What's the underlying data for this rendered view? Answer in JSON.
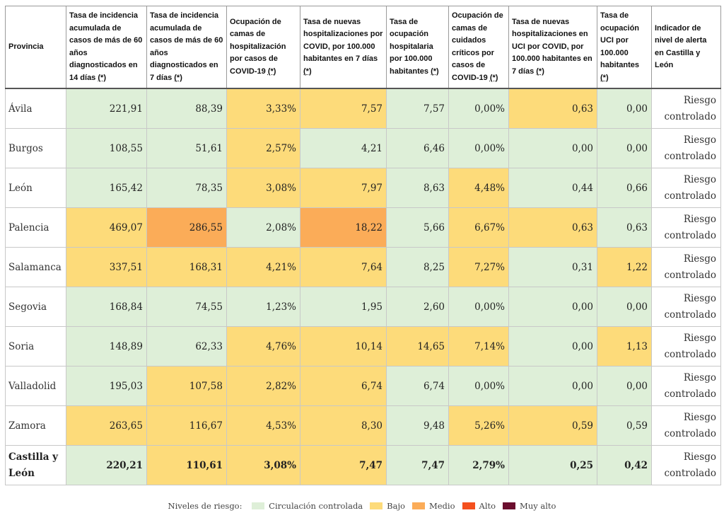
{
  "table": {
    "headers": [
      "Provincia",
      "Tasa de incidencia acumulada de casos de más de 60 años diagnosticados en 14 días",
      "Tasa de incidencia acumulada de casos de más de 60 años diagnosticados en 7 días",
      "Ocupación de camas de hospitalización por casos de COVID-19",
      "Tasa de nuevas hospitalizaciones por COVID, por 100.000 habitantes en 7 días",
      "Tasa de ocupación hospitalaria por 100.000 habitantes",
      "Ocupación de camas de cuidados críticos por casos de COVID-19",
      "Tasa de nuevas hospitalizaciones en UCI por COVID, por 100.000 habitantes en 7 días",
      "Tasa de ocupación UCI por 100.000 habitantes",
      "Indicador de nivel de alerta en Castilla y León"
    ],
    "footnote_marker": "(*)",
    "rows": [
      {
        "province": "Ávila",
        "values": [
          "221,91",
          "88,39",
          "3,33%",
          "7,57",
          "7,57",
          "0,00%",
          "0,63",
          "0,00"
        ],
        "indicator": [
          "Riesgo",
          "controlado"
        ]
      },
      {
        "province": "Burgos",
        "values": [
          "108,55",
          "51,61",
          "2,57%",
          "4,21",
          "6,46",
          "0,00%",
          "0,00",
          "0,00"
        ],
        "indicator": [
          "Riesgo",
          "controlado"
        ]
      },
      {
        "province": "León",
        "values": [
          "165,42",
          "78,35",
          "3,08%",
          "7,97",
          "8,63",
          "4,48%",
          "0,44",
          "0,66"
        ],
        "indicator": [
          "Riesgo",
          "controlado"
        ]
      },
      {
        "province": "Palencia",
        "values": [
          "469,07",
          "286,55",
          "2,08%",
          "18,22",
          "5,66",
          "6,67%",
          "0,63",
          "0,63"
        ],
        "indicator": [
          "Riesgo",
          "controlado"
        ]
      },
      {
        "province": "Salamanca",
        "values": [
          "337,51",
          "168,31",
          "4,21%",
          "7,64",
          "8,25",
          "7,27%",
          "0,31",
          "1,22"
        ],
        "indicator": [
          "Riesgo",
          "controlado"
        ]
      },
      {
        "province": "Segovia",
        "values": [
          "168,84",
          "74,55",
          "1,23%",
          "1,95",
          "2,60",
          "0,00%",
          "0,00",
          "0,00"
        ],
        "indicator": [
          "Riesgo",
          "controlado"
        ]
      },
      {
        "province": "Soria",
        "values": [
          "148,89",
          "62,33",
          "4,76%",
          "10,14",
          "14,65",
          "7,14%",
          "0,00",
          "1,13"
        ],
        "indicator": [
          "Riesgo",
          "controlado"
        ]
      },
      {
        "province": "Valladolid",
        "values": [
          "195,03",
          "107,58",
          "2,82%",
          "6,74",
          "6,74",
          "0,00%",
          "0,00",
          "0,00"
        ],
        "indicator": [
          "Riesgo",
          "controlado"
        ]
      },
      {
        "province": "Zamora",
        "values": [
          "263,65",
          "116,67",
          "4,53%",
          "8,30",
          "9,48",
          "5,26%",
          "0,59",
          "0,59"
        ],
        "indicator": [
          "Riesgo",
          "controlado"
        ]
      }
    ],
    "total": {
      "province": [
        "Castilla y",
        "León"
      ],
      "values": [
        "220,21",
        "110,61",
        "3,08%",
        "7,47",
        "7,47",
        "2,79%",
        "0,25",
        "0,42"
      ],
      "indicator": [
        "Riesgo",
        "controlado"
      ]
    },
    "levels": [
      [
        "g",
        "g",
        "y",
        "y",
        "g",
        "g",
        "y",
        "g"
      ],
      [
        "g",
        "g",
        "y",
        "g",
        "g",
        "g",
        "g",
        "g"
      ],
      [
        "g",
        "g",
        "y",
        "y",
        "g",
        "y",
        "g",
        "g"
      ],
      [
        "y",
        "o",
        "g",
        "o",
        "g",
        "y",
        "y",
        "g"
      ],
      [
        "y",
        "y",
        "y",
        "y",
        "g",
        "y",
        "g",
        "y"
      ],
      [
        "g",
        "g",
        "g",
        "g",
        "g",
        "g",
        "g",
        "g"
      ],
      [
        "g",
        "g",
        "y",
        "y",
        "y",
        "y",
        "g",
        "y"
      ],
      [
        "g",
        "y",
        "y",
        "y",
        "g",
        "g",
        "g",
        "g"
      ],
      [
        "y",
        "y",
        "y",
        "y",
        "g",
        "y",
        "y",
        "g"
      ]
    ],
    "total_levels": [
      "g",
      "y",
      "y",
      "y",
      "g",
      "g",
      "g",
      "g"
    ]
  },
  "legend": {
    "title": "Niveles de riesgo:",
    "items": [
      {
        "label": "Circulación controlada",
        "color": "#deefd8"
      },
      {
        "label": "Bajo",
        "color": "#fddb7a"
      },
      {
        "label": "Medio",
        "color": "#fbac58"
      },
      {
        "label": "Alto",
        "color": "#f4501e"
      },
      {
        "label": "Muy alto",
        "color": "#6b0e2e"
      }
    ]
  }
}
